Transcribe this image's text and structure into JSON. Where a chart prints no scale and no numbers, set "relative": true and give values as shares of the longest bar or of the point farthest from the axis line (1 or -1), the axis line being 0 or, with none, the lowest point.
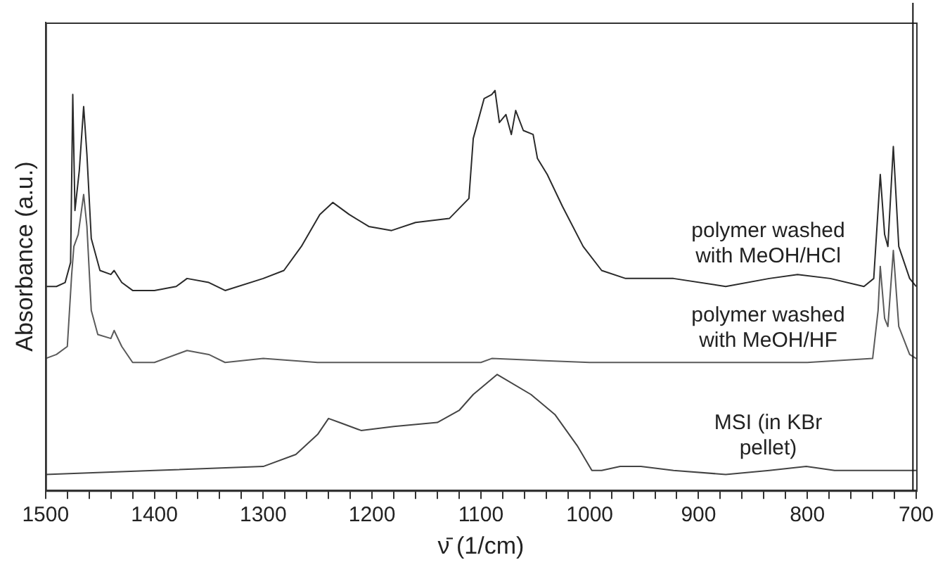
{
  "chart_data": {
    "type": "line",
    "relative": true,
    "xlabel": "ν̄ (1/cm)",
    "ylabel": "Absorbance (a.u.)",
    "xlim": [
      1500,
      700
    ],
    "xticks": [
      1500,
      {
        "value": 1480,
        "label": null
      },
      {
        "value": 1460,
        "label": null
      },
      {
        "value": 1440,
        "label": null
      },
      {
        "value": 1420,
        "label": null
      },
      1400,
      {
        "value": 1380,
        "label": null
      },
      {
        "value": 1360,
        "label": null
      },
      {
        "value": 1340,
        "label": null
      },
      {
        "value": 1320,
        "label": null
      },
      1300,
      {
        "value": 1280,
        "label": null
      },
      {
        "value": 1260,
        "label": null
      },
      {
        "value": 1240,
        "label": null
      },
      {
        "value": 1220,
        "label": null
      },
      1200,
      {
        "value": 1180,
        "label": null
      },
      {
        "value": 1160,
        "label": null
      },
      {
        "value": 1140,
        "label": null
      },
      {
        "value": 1120,
        "label": null
      },
      1100,
      {
        "value": 1080,
        "label": null
      },
      {
        "value": 1060,
        "label": null
      },
      {
        "value": 1040,
        "label": null
      },
      {
        "value": 1020,
        "label": null
      },
      1000,
      {
        "value": 980,
        "label": null
      },
      {
        "value": 960,
        "label": null
      },
      {
        "value": 940,
        "label": null
      },
      {
        "value": 920,
        "label": null
      },
      900,
      {
        "value": 880,
        "label": null
      },
      {
        "value": 860,
        "label": null
      },
      {
        "value": 840,
        "label": null
      },
      {
        "value": 820,
        "label": null
      },
      800,
      {
        "value": 780,
        "label": null
      },
      {
        "value": 760,
        "label": null
      },
      {
        "value": 740,
        "label": null
      },
      {
        "value": 720,
        "label": null
      },
      700
    ],
    "grid": false,
    "legend": false,
    "marker": "none",
    "line_style": "solid",
    "ref_lines": [
      {
        "axis": "x",
        "value": 703,
        "label": null,
        "color": "#111111"
      }
    ],
    "series": [
      {
        "name": "polymer washed with MeOH/HCl",
        "color": "#2a2a2a",
        "x": [
          1500,
          1490,
          1482,
          1477,
          1475,
          1473,
          1469,
          1465,
          1462,
          1458,
          1450,
          1440,
          1437,
          1430,
          1420,
          1400,
          1380,
          1370,
          1350,
          1335,
          1300,
          1281,
          1265,
          1248,
          1236,
          1221,
          1203,
          1182,
          1160,
          1129,
          1111,
          1107,
          1097,
          1090,
          1087,
          1083,
          1077,
          1072,
          1068,
          1061,
          1052,
          1048,
          1039,
          1025,
          1006,
          989,
          967,
          923,
          875,
          835,
          809,
          779,
          748,
          739,
          733,
          729,
          726,
          721,
          716,
          706,
          700
        ],
        "values": [
          0.51,
          0.51,
          0.52,
          0.57,
          0.99,
          0.7,
          0.8,
          0.96,
          0.84,
          0.63,
          0.55,
          0.54,
          0.55,
          0.52,
          0.5,
          0.5,
          0.51,
          0.53,
          0.52,
          0.5,
          0.53,
          0.55,
          0.61,
          0.69,
          0.72,
          0.69,
          0.66,
          0.65,
          0.67,
          0.68,
          0.73,
          0.88,
          0.98,
          0.99,
          1,
          0.92,
          0.94,
          0.89,
          0.95,
          0.9,
          0.89,
          0.83,
          0.79,
          0.71,
          0.61,
          0.55,
          0.53,
          0.53,
          0.51,
          0.53,
          0.54,
          0.53,
          0.51,
          0.53,
          0.79,
          0.64,
          0.61,
          0.86,
          0.61,
          0.53,
          0.51
        ]
      },
      {
        "name": "polymer washed with MeOH/HF",
        "color": "#5a5a5a",
        "x": [
          1500,
          1490,
          1480,
          1476,
          1474,
          1470,
          1465,
          1462,
          1458,
          1452,
          1440,
          1437,
          1430,
          1420,
          1400,
          1370,
          1350,
          1335,
          1300,
          1250,
          1200,
          1100,
          1090,
          1000,
          900,
          800,
          740,
          735,
          733,
          729,
          726,
          721,
          716,
          706,
          700
        ],
        "values": [
          0.33,
          0.34,
          0.36,
          0.54,
          0.61,
          0.64,
          0.74,
          0.66,
          0.45,
          0.39,
          0.38,
          0.4,
          0.36,
          0.32,
          0.32,
          0.35,
          0.34,
          0.32,
          0.33,
          0.32,
          0.32,
          0.32,
          0.33,
          0.32,
          0.32,
          0.32,
          0.33,
          0.45,
          0.56,
          0.43,
          0.41,
          0.6,
          0.41,
          0.34,
          0.33
        ]
      },
      {
        "name": "MSI (in KBr pellet)",
        "color": "#444444",
        "x": [
          1500,
          1400,
          1300,
          1270,
          1250,
          1240,
          1230,
          1210,
          1180,
          1140,
          1120,
          1107,
          1085,
          1054,
          1032,
          1011,
          998,
          989,
          972,
          953,
          923,
          875,
          835,
          801,
          775,
          748,
          700
        ],
        "values": [
          0.04,
          0.05,
          0.06,
          0.09,
          0.14,
          0.18,
          0.17,
          0.15,
          0.16,
          0.17,
          0.2,
          0.24,
          0.29,
          0.24,
          0.19,
          0.11,
          0.05,
          0.05,
          0.06,
          0.06,
          0.05,
          0.04,
          0.05,
          0.06,
          0.05,
          0.05,
          0.05
        ]
      }
    ]
  }
}
